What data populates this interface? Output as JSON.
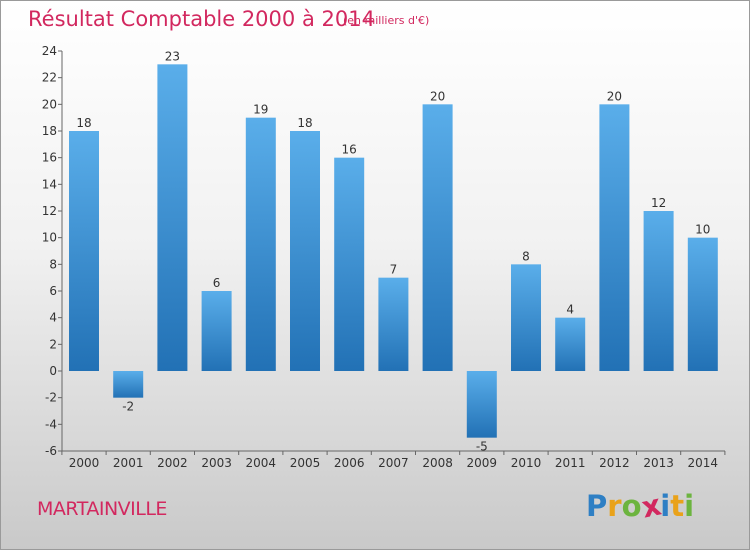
{
  "chart_data": {
    "type": "bar",
    "title": "Résultat Comptable 2000 à 2014",
    "subtitle": "(en milliers d'€)",
    "categories": [
      "2000",
      "2001",
      "2002",
      "2003",
      "2004",
      "2005",
      "2006",
      "2007",
      "2008",
      "2009",
      "2010",
      "2011",
      "2012",
      "2013",
      "2014"
    ],
    "values": [
      18,
      -2,
      23,
      6,
      19,
      18,
      16,
      7,
      20,
      -5,
      8,
      4,
      20,
      12,
      10
    ],
    "ylim": [
      -6,
      24
    ],
    "yticks": [
      -6,
      -4,
      -2,
      0,
      2,
      4,
      6,
      8,
      10,
      12,
      14,
      16,
      18,
      20,
      22,
      24
    ],
    "grid": false,
    "colors": {
      "bar_top": "#5aaeea",
      "bar_bottom": "#2271b5",
      "text": "#d2285f"
    }
  },
  "place_name": "MARTAINVILLE",
  "logo": {
    "letters": [
      "P",
      "r",
      "o",
      "x",
      "i",
      "t",
      "i"
    ],
    "colors": [
      "#2e7fc4",
      "#e9a21a",
      "#6cb43f",
      "#d2285f",
      "#2e7fc4",
      "#e9a21a",
      "#6cb43f"
    ]
  }
}
